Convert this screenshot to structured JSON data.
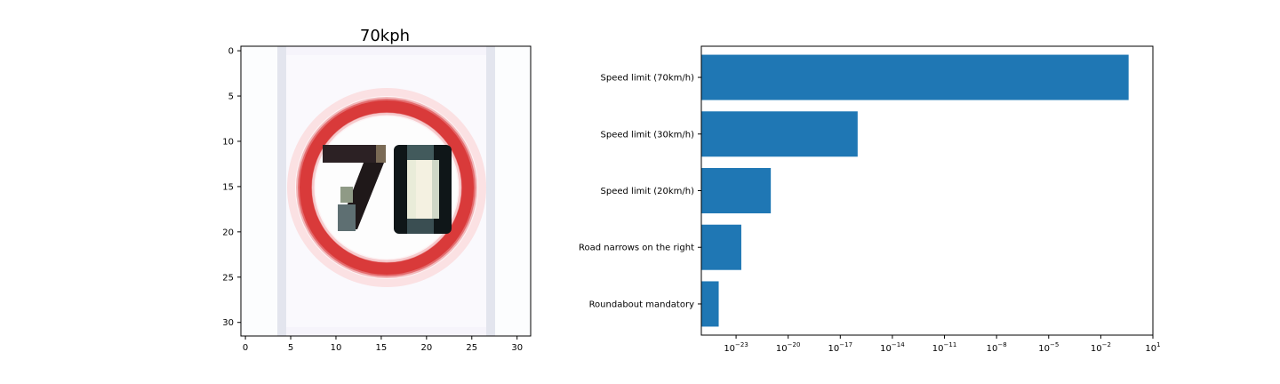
{
  "figure": {
    "left_panel": {
      "title": "70kph",
      "image_subject": "70 km/h speed limit traffic sign (32x32 pixels, upscaled)",
      "x_ticks": [
        "0",
        "5",
        "10",
        "15",
        "20",
        "25",
        "30"
      ],
      "y_ticks": [
        "0",
        "5",
        "10",
        "15",
        "20",
        "25",
        "30"
      ],
      "image_extent": [
        -0.5,
        31.5
      ]
    },
    "right_panel": {
      "x_scale": "log",
      "x_tick_labels": [
        {
          "base": "10",
          "exp": "−23",
          "value": -23
        },
        {
          "base": "10",
          "exp": "−20",
          "value": -20
        },
        {
          "base": "10",
          "exp": "−17",
          "value": -17
        },
        {
          "base": "10",
          "exp": "−14",
          "value": -14
        },
        {
          "base": "10",
          "exp": "−11",
          "value": -11
        },
        {
          "base": "10",
          "exp": "−8",
          "value": -8
        },
        {
          "base": "10",
          "exp": "−5",
          "value": -5
        },
        {
          "base": "10",
          "exp": "−2",
          "value": -2
        },
        {
          "base": "10",
          "exp": "1",
          "value": 1
        }
      ]
    }
  },
  "chart_data": [
    {
      "type": "image",
      "title": "70kph",
      "xlim": [
        -0.5,
        31.5
      ],
      "ylim": [
        31.5,
        -0.5
      ],
      "sign": {
        "ring_color": "#d93a3a",
        "digits": "70",
        "digit_color": "#1a1a1a"
      }
    },
    {
      "type": "bar",
      "orientation": "horizontal",
      "x_scale": "log",
      "categories": [
        "Speed limit (70km/h)",
        "Speed limit (30km/h)",
        "Speed limit (20km/h)",
        "Road narrows on the right",
        "Roundabout mandatory"
      ],
      "values": [
        0.4,
        1e-16,
        1e-21,
        2e-23,
        1e-24
      ],
      "xlim": [
        1e-25,
        10
      ],
      "bar_color": "#1f77b4"
    }
  ]
}
